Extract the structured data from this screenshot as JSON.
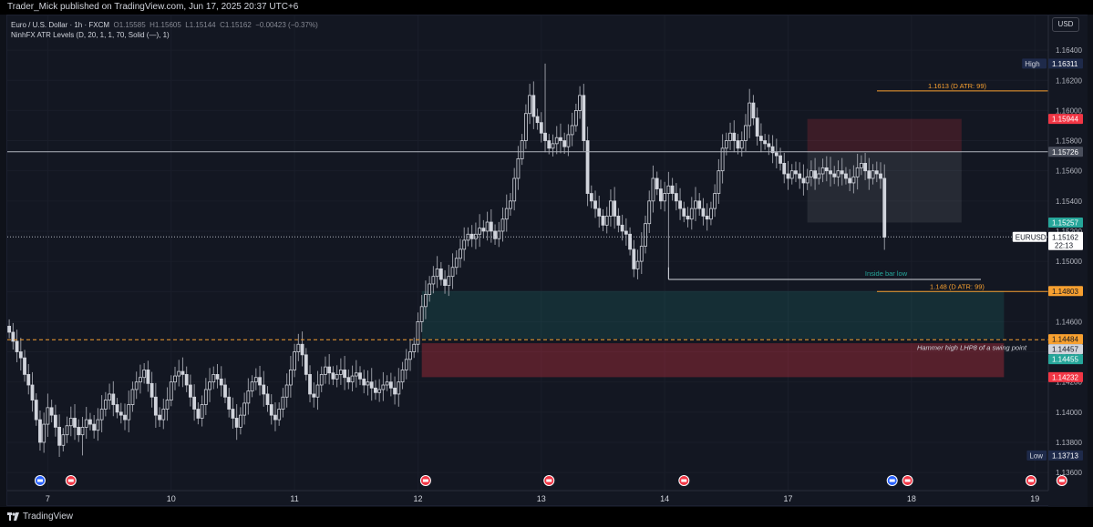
{
  "header": {
    "publisher": "Trader_Mick published on TradingView.com, Jun 17, 2025 20:37 UTC+6"
  },
  "legend": {
    "symbol": "Euro / U.S. Dollar · 1h · FXCM",
    "open_label": "O",
    "open": "1.15585",
    "high_label": "H",
    "high": "1.15605",
    "low_label": "L",
    "low": "1.15144",
    "close_label": "C",
    "close": "1.15162",
    "change": "−0.00423 (−0.37%)",
    "indicator": "NinhFX ATR Levels (D, 20, 1, 1, 70, Solid (—), 1)"
  },
  "currency_button": "USD",
  "footer": {
    "brand": "TradingView"
  },
  "colors": {
    "background": "#131722",
    "candle": "#d1d4dc",
    "grid": "#1c2030",
    "atr_line": "#f7a030",
    "green_zone": "#1c3a2a",
    "red_zone": "#5c1e28",
    "label_red": "#f23645",
    "label_green": "#26a69a",
    "label_blue": "#2962ff"
  },
  "chart_data": {
    "type": "candlestick",
    "symbol": "EURUSD",
    "timeframe": "1h",
    "y_ticks": [
      1.136,
      1.138,
      1.14,
      1.142,
      1.144,
      1.146,
      1.148,
      1.15,
      1.152,
      1.154,
      1.156,
      1.158,
      1.16,
      1.162,
      1.164
    ],
    "y_tick_labels": [
      "1.13600",
      "1.13800",
      "1.14000",
      "1.14200",
      "1.14400",
      "1.14600",
      "1.14800",
      "1.15000",
      "1.15200",
      "1.15400",
      "1.15600",
      "1.15800",
      "1.16000",
      "1.16200",
      "1.16400"
    ],
    "ylim": [
      1.1348,
      1.1663
    ],
    "x_labels": [
      "7",
      "10",
      "11",
      "12",
      "13",
      "14",
      "17",
      "18",
      "19"
    ],
    "x_label_bars": [
      10,
      42,
      74,
      106,
      138,
      170,
      202,
      234,
      266
    ],
    "bar_count": 270,
    "last_bar_index": 244,
    "close_series": [
      1.1453,
      1.1447,
      1.144,
      1.1436,
      1.1425,
      1.1418,
      1.1408,
      1.1395,
      1.138,
      1.1392,
      1.1403,
      1.1398,
      1.139,
      1.1378,
      1.1385,
      1.1391,
      1.1396,
      1.139,
      1.1385,
      1.139,
      1.1395,
      1.1392,
      1.1388,
      1.1395,
      1.1402,
      1.1408,
      1.1412,
      1.1405,
      1.14,
      1.1398,
      1.1395,
      1.1405,
      1.1415,
      1.142,
      1.1423,
      1.1428,
      1.1419,
      1.141,
      1.1398,
      1.1395,
      1.1402,
      1.1408,
      1.142,
      1.1424,
      1.1427,
      1.1425,
      1.1418,
      1.141,
      1.1402,
      1.1396,
      1.1405,
      1.1415,
      1.142,
      1.1425,
      1.1422,
      1.1418,
      1.141,
      1.1402,
      1.1396,
      1.139,
      1.1398,
      1.1406,
      1.1414,
      1.142,
      1.1423,
      1.1418,
      1.1412,
      1.1405,
      1.1398,
      1.1395,
      1.1402,
      1.141,
      1.1418,
      1.1428,
      1.144,
      1.1445,
      1.1438,
      1.1425,
      1.1412,
      1.141,
      1.1418,
      1.1425,
      1.143,
      1.1426,
      1.1422,
      1.1425,
      1.1428,
      1.1423,
      1.142,
      1.1424,
      1.1426,
      1.1422,
      1.1418,
      1.142,
      1.1416,
      1.1413,
      1.1415,
      1.1418,
      1.142,
      1.1416,
      1.1412,
      1.142,
      1.1428,
      1.1435,
      1.144,
      1.1445,
      1.146,
      1.147,
      1.1478,
      1.1485,
      1.149,
      1.1495,
      1.1488,
      1.1484,
      1.149,
      1.1496,
      1.1502,
      1.1508,
      1.1514,
      1.1518,
      1.1515,
      1.1518,
      1.1522,
      1.152,
      1.1526,
      1.152,
      1.1515,
      1.152,
      1.1528,
      1.1535,
      1.154,
      1.1555,
      1.1568,
      1.158,
      1.1598,
      1.161,
      1.1596,
      1.1592,
      1.1585,
      1.158,
      1.1575,
      1.1578,
      1.1582,
      1.158,
      1.1576,
      1.1584,
      1.159,
      1.16,
      1.161,
      1.158,
      1.1545,
      1.154,
      1.1535,
      1.153,
      1.1524,
      1.153,
      1.154,
      1.153,
      1.1524,
      1.152,
      1.1518,
      1.1508,
      1.1495,
      1.15,
      1.151,
      1.1525,
      1.154,
      1.1555,
      1.1548,
      1.154,
      1.1545,
      1.155,
      1.1545,
      1.154,
      1.1535,
      1.153,
      1.1528,
      1.1535,
      1.154,
      1.1535,
      1.153,
      1.1528,
      1.1535,
      1.1545,
      1.156,
      1.1575,
      1.158,
      1.1585,
      1.158,
      1.1575,
      1.158,
      1.159,
      1.1605,
      1.1595,
      1.1583,
      1.158,
      1.1578,
      1.1576,
      1.1572,
      1.157,
      1.1565,
      1.1558,
      1.1555,
      1.156,
      1.1558,
      1.1555,
      1.1552,
      1.1556,
      1.156,
      1.1555,
      1.1558,
      1.1562,
      1.156,
      1.1558,
      1.1556,
      1.156,
      1.1558,
      1.1555,
      1.1552,
      1.1556,
      1.1562,
      1.1565,
      1.156,
      1.1555,
      1.156,
      1.1558,
      1.1555,
      1.1516
    ],
    "horizontal_lines": [
      {
        "value": 1.15726,
        "label": "1.15726",
        "style": "solid"
      },
      {
        "value": 1.15162,
        "label": "1.15162",
        "style": "dotted"
      },
      {
        "value": 1.1448,
        "style": "dashed"
      }
    ],
    "atr_levels": [
      {
        "value": 1.1613,
        "label": "1.1613 (D ATR: 99)"
      },
      {
        "value": 1.148,
        "label": "1.148 (D ATR: 99)"
      }
    ],
    "zones": [
      {
        "kind": "green",
        "from": 1.14484,
        "to": 1.14803,
        "start_bar": 107,
        "end_bar": 258
      },
      {
        "kind": "red",
        "from": 1.14232,
        "to": 1.14457,
        "start_bar": 107,
        "end_bar": 258
      },
      {
        "kind": "red",
        "from": 1.15726,
        "to": 1.15944,
        "start_bar": 207,
        "end_bar": 247
      },
      {
        "kind": "green",
        "from": 1.15257,
        "to": 1.15726,
        "start_bar": 207,
        "end_bar": 247
      }
    ],
    "annotations": [
      {
        "text": "Inside bar low",
        "value": 1.1488
      },
      {
        "text": "Hammer high LHP8 of a swing point",
        "value": 1.1443
      }
    ],
    "price_labels": [
      {
        "prefix": "High",
        "value": "1.16311",
        "color": "#1e2a4a"
      },
      {
        "value": "1.15944",
        "color": "#f23645"
      },
      {
        "value": "1.15726",
        "color": "#4a4f5c"
      },
      {
        "value": "1.15257",
        "color": "#26a69a"
      },
      {
        "prefix": "EURUSD",
        "value": "1.15162",
        "sub": "22:13",
        "color": "#ffffff"
      },
      {
        "value": "1.14803",
        "color": "#f7a030"
      },
      {
        "value": "1.14484",
        "color": "#f7a030"
      },
      {
        "value": "1.14457",
        "color": "#d1d4dc"
      },
      {
        "value": "1.14455",
        "color": "#26a69a"
      },
      {
        "value": "1.14232",
        "color": "#f23645"
      },
      {
        "prefix": "Low",
        "value": "1.13713",
        "color": "#1e2a4a"
      }
    ],
    "event_markers": [
      {
        "bar": 8,
        "kind": "globe"
      },
      {
        "bar": 16,
        "kind": "flag"
      },
      {
        "bar": 108,
        "kind": "flag"
      },
      {
        "bar": 140,
        "kind": "flag"
      },
      {
        "bar": 175,
        "kind": "flag"
      },
      {
        "bar": 229,
        "kind": "globe"
      },
      {
        "bar": 233,
        "kind": "flag"
      },
      {
        "bar": 265,
        "kind": "flag"
      },
      {
        "bar": 273,
        "kind": "flag"
      }
    ]
  }
}
